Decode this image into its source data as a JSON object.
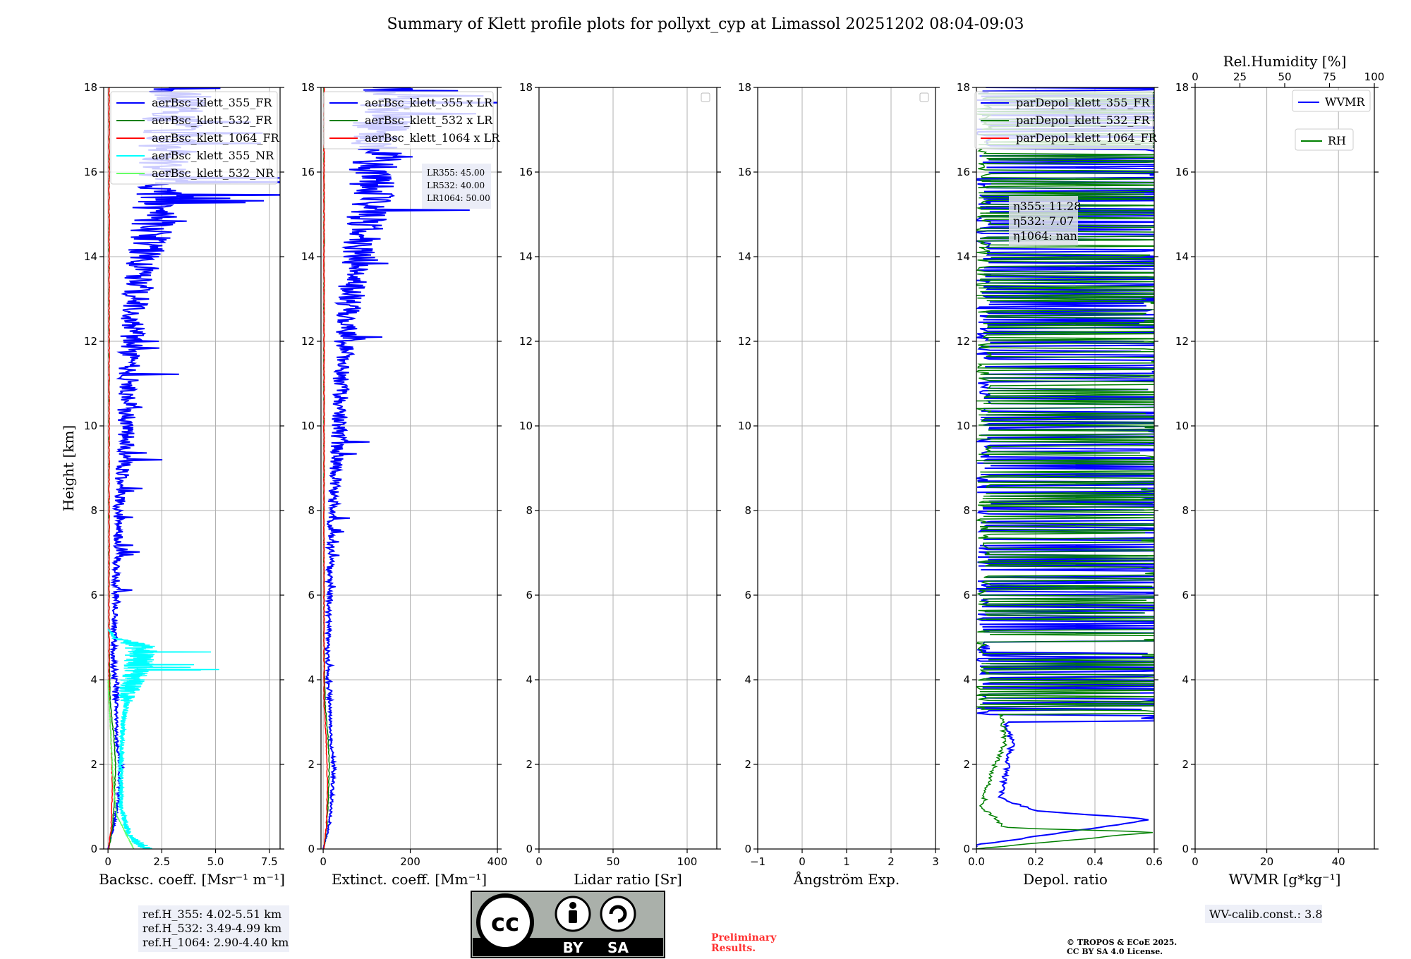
{
  "title": "Summary of Klett profile plots for pollyxt_cyp at Limassol 20251202 08:04-09:03",
  "colors": {
    "blue": "#0000ff",
    "green": "#008000",
    "red": "#ff0000",
    "cyan": "#00ffff",
    "lightgreen": "#66ff66",
    "grid": "#b0b0b0"
  },
  "chart_data": [
    {
      "type": "line",
      "id": "backscatter",
      "xlabel": "Backsc. coeff. [Msr⁻¹ m⁻¹]",
      "ylabel": "Height [km]",
      "xlim": [
        -0.2,
        8.0
      ],
      "ylim": [
        0,
        18
      ],
      "xticks": [
        {
          "v": 0,
          "t": "0"
        },
        {
          "v": 2.5,
          "t": "2.5"
        },
        {
          "v": 5,
          "t": "5.0"
        },
        {
          "v": 7.5,
          "t": "7.5"
        }
      ],
      "yticks": [
        0,
        2,
        4,
        6,
        8,
        10,
        12,
        14,
        16,
        18
      ],
      "legend": [
        "aerBsc_klett_355_FR",
        "aerBsc_klett_532_FR",
        "aerBsc_klett_1064_FR",
        "aerBsc_klett_355_NR",
        "aerBsc_klett_532_NR"
      ],
      "series": [
        {
          "name": "aerBsc_klett_355_FR",
          "color": "blue",
          "style": "noisy",
          "seed": 11,
          "profile": [
            [
              0,
              0.0
            ],
            [
              0.6,
              0.3
            ],
            [
              1.2,
              0.5
            ],
            [
              2,
              0.6
            ],
            [
              2.5,
              0.4
            ],
            [
              3.5,
              0.4
            ],
            [
              4.5,
              0.25
            ],
            [
              6,
              0.35
            ],
            [
              8,
              0.5
            ],
            [
              9.5,
              0.8
            ],
            [
              10.5,
              0.9
            ],
            [
              11.5,
              1.0
            ],
            [
              12.5,
              1.2
            ],
            [
              13.5,
              1.5
            ],
            [
              14.5,
              2.0
            ],
            [
              15.5,
              2.4
            ],
            [
              16.5,
              2.8
            ],
            [
              17.5,
              3.2
            ],
            [
              18,
              3.5
            ]
          ]
        },
        {
          "name": "aerBsc_klett_532_FR",
          "color": "green",
          "style": "smooth",
          "seed": 12,
          "profile": [
            [
              0,
              0.05
            ],
            [
              0.5,
              0.2
            ],
            [
              1.2,
              0.3
            ],
            [
              2,
              0.35
            ],
            [
              2.5,
              0.3
            ],
            [
              3.5,
              0.1
            ],
            [
              5,
              0.05
            ],
            [
              18,
              0.05
            ]
          ]
        },
        {
          "name": "aerBsc_klett_1064_FR",
          "color": "red",
          "style": "smooth",
          "seed": 13,
          "profile": [
            [
              0,
              0.02
            ],
            [
              0.5,
              0.15
            ],
            [
              1.5,
              0.2
            ],
            [
              2.5,
              0.15
            ],
            [
              3.5,
              0.05
            ],
            [
              18,
              0.05
            ]
          ]
        },
        {
          "name": "aerBsc_klett_355_NR",
          "color": "cyan",
          "style": "noisy",
          "seed": 14,
          "profile": [
            [
              0,
              1.8
            ],
            [
              0.3,
              1.0
            ],
            [
              1,
              0.6
            ],
            [
              2,
              0.6
            ],
            [
              3,
              0.7
            ],
            [
              3.8,
              1.0
            ],
            [
              4.3,
              1.4
            ],
            [
              4.8,
              1.5
            ],
            [
              5.0,
              0.3
            ],
            [
              5.2,
              0
            ]
          ]
        },
        {
          "name": "aerBsc_klett_532_NR",
          "color": "lightgreen",
          "style": "smooth",
          "seed": 15,
          "profile": [
            [
              0,
              1.2
            ],
            [
              0.3,
              0.9
            ],
            [
              0.8,
              0.4
            ],
            [
              1.5,
              0.25
            ],
            [
              2.5,
              0.15
            ],
            [
              3.5,
              0.05
            ],
            [
              4,
              0
            ]
          ]
        }
      ]
    },
    {
      "type": "line",
      "id": "extinction",
      "xlabel": "Extinct. coeff. [Mm⁻¹]",
      "ylabel": "",
      "xlim": [
        -5,
        400
      ],
      "ylim": [
        0,
        18
      ],
      "xticks": [
        {
          "v": 0,
          "t": "0"
        },
        {
          "v": 200,
          "t": "200"
        },
        {
          "v": 400,
          "t": "400"
        }
      ],
      "yticks": [
        0,
        2,
        4,
        6,
        8,
        10,
        12,
        14,
        16,
        18
      ],
      "legend": [
        "aerBsc_klett_355 x LR",
        "aerBsc_klett_532 x LR",
        "aerBsc_klett_1064 x LR"
      ],
      "series": [
        {
          "name": "aerBsc_klett_355 x LR",
          "color": "blue",
          "style": "noisy",
          "seed": 21,
          "profile": [
            [
              0,
              0.0
            ],
            [
              0.6,
              15
            ],
            [
              1.2,
              20
            ],
            [
              2,
              25
            ],
            [
              2.5,
              18
            ],
            [
              3.5,
              15
            ],
            [
              4.5,
              10
            ],
            [
              6,
              14
            ],
            [
              8,
              20
            ],
            [
              9.5,
              35
            ],
            [
              10.5,
              40
            ],
            [
              11.5,
              45
            ],
            [
              12.5,
              55
            ],
            [
              13.5,
              70
            ],
            [
              14.5,
              90
            ],
            [
              15.5,
              110
            ],
            [
              16.5,
              125
            ],
            [
              17.5,
              140
            ],
            [
              18,
              155
            ]
          ]
        },
        {
          "name": "aerBsc_klett_532 x LR",
          "color": "green",
          "style": "smooth",
          "seed": 22,
          "profile": [
            [
              0,
              2
            ],
            [
              0.5,
              8
            ],
            [
              1.2,
              12
            ],
            [
              2,
              14
            ],
            [
              2.5,
              12
            ],
            [
              3.5,
              4
            ],
            [
              5,
              2
            ],
            [
              18,
              2
            ]
          ]
        },
        {
          "name": "aerBsc_klett_1064 x LR",
          "color": "red",
          "style": "smooth",
          "seed": 23,
          "profile": [
            [
              0,
              1
            ],
            [
              0.5,
              7
            ],
            [
              1.5,
              10
            ],
            [
              2.5,
              7
            ],
            [
              3.5,
              2
            ],
            [
              18,
              2
            ]
          ]
        }
      ]
    },
    {
      "type": "line",
      "id": "lidar-ratio",
      "xlabel": "Lidar ratio [Sr]",
      "ylabel": "",
      "xlim": [
        0,
        120
      ],
      "ylim": [
        0,
        18
      ],
      "xticks": [
        {
          "v": 0,
          "t": "0"
        },
        {
          "v": 50,
          "t": "50"
        },
        {
          "v": 100,
          "t": "100"
        }
      ],
      "yticks": [
        0,
        2,
        4,
        6,
        8,
        10,
        12,
        14,
        16,
        18
      ],
      "legend": [],
      "series": []
    },
    {
      "type": "line",
      "id": "angstrom",
      "xlabel": "Ångström Exp.",
      "ylabel": "",
      "xlim": [
        -1,
        3
      ],
      "ylim": [
        0,
        18
      ],
      "xticks": [
        {
          "v": -1,
          "t": "−1"
        },
        {
          "v": 0,
          "t": "0"
        },
        {
          "v": 1,
          "t": "1"
        },
        {
          "v": 2,
          "t": "2"
        },
        {
          "v": 3,
          "t": "3"
        }
      ],
      "yticks": [
        0,
        2,
        4,
        6,
        8,
        10,
        12,
        14,
        16,
        18
      ],
      "legend": [],
      "series": []
    },
    {
      "type": "line",
      "id": "depol",
      "xlabel": "Depol. ratio",
      "ylabel": "",
      "xlim": [
        0,
        0.6
      ],
      "ylim": [
        0,
        18
      ],
      "xticks": [
        {
          "v": 0,
          "t": "0.0"
        },
        {
          "v": 0.2,
          "t": "0.2"
        },
        {
          "v": 0.4,
          "t": "0.4"
        },
        {
          "v": 0.6,
          "t": "0.6"
        }
      ],
      "yticks": [
        0,
        2,
        4,
        6,
        8,
        10,
        12,
        14,
        16,
        18
      ],
      "legend": [
        "parDepol_klett_355_FR",
        "parDepol_klett_532_FR",
        "parDepol_klett_1064_FR"
      ],
      "series": [
        {
          "name": "parDepol_klett_355_FR",
          "color": "blue",
          "style": "depol355",
          "seed": 31,
          "profile": [
            [
              0,
              0.0
            ],
            [
              0.1,
              0.005
            ],
            [
              0.7,
              0.6
            ],
            [
              0.9,
              0.2
            ],
            [
              1.2,
              0.08
            ],
            [
              1.8,
              0.1
            ],
            [
              2.5,
              0.12
            ],
            [
              3.0,
              0.1
            ]
          ]
        },
        {
          "name": "parDepol_klett_532_FR",
          "color": "green",
          "style": "depol532",
          "seed": 32,
          "profile": [
            [
              0,
              0.0
            ],
            [
              0.4,
              0.6
            ],
            [
              0.5,
              0.1
            ],
            [
              1.0,
              0.02
            ],
            [
              1.8,
              0.05
            ],
            [
              2.5,
              0.1
            ],
            [
              3.2,
              0.08
            ]
          ]
        },
        {
          "name": "parDepol_klett_1064_FR",
          "color": "red",
          "style": "none",
          "seed": 33,
          "profile": []
        }
      ]
    },
    {
      "type": "line",
      "id": "wvmr",
      "xlabel": "WVMR [g*kg⁻¹]",
      "ylabel": "",
      "xlim": [
        0,
        50
      ],
      "ylim": [
        0,
        18
      ],
      "xticks": [
        {
          "v": 0,
          "t": "0"
        },
        {
          "v": 20,
          "t": "20"
        },
        {
          "v": 40,
          "t": "40"
        }
      ],
      "yticks": [
        0,
        2,
        4,
        6,
        8,
        10,
        12,
        14,
        16,
        18
      ],
      "top_axis": {
        "label": "Rel.Humidity [%]",
        "xlim": [
          0,
          100
        ],
        "ticks": [
          "0",
          "25",
          "50",
          "75",
          "100"
        ]
      },
      "legend": [
        "WVMR",
        "RH"
      ],
      "series": []
    }
  ],
  "annotations": {
    "lidar_ratio": [
      "LR355: 45.00",
      "LR532: 40.00",
      "LR1064: 50.00"
    ],
    "eta": [
      "η355: 11.28",
      "η532: 7.07",
      "η1064: nan"
    ],
    "ref_heights": [
      "ref.H_355: 4.02-5.51 km",
      "ref.H_532: 3.49-4.99 km",
      "ref.H_1064: 2.90-4.40 km"
    ],
    "wv_calib": "WV-calib.const.: 3.8",
    "preliminary": [
      "Preliminary",
      "Results."
    ],
    "copyright": [
      "© TROPOS & ECoE 2025.",
      "CC BY SA 4.0 License."
    ],
    "license_badge": {
      "by": "BY",
      "sa": "SA",
      "cc": "cc"
    }
  }
}
